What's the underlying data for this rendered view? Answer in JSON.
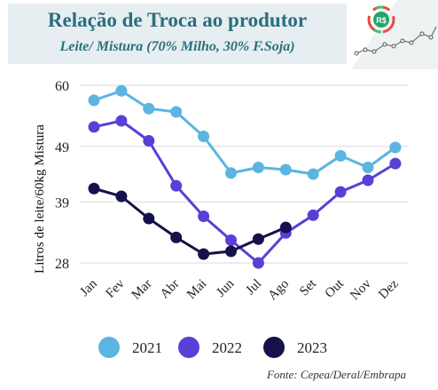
{
  "header": {
    "title": "Relação de Troca ao produtor",
    "subtitle": "Leite/ Mistura (70% Milho, 30% F.Soja)"
  },
  "logo": {
    "badge_text": "R$",
    "icon_name": "rising-trend-logo-icon"
  },
  "source": "Fonte: Cepea/Deral/Embrapa",
  "chart_data": {
    "type": "line",
    "title": "Relação de Troca ao produtor",
    "subtitle": "Leite/ Mistura (70% Milho, 30% F.Soja)",
    "ylabel": "Litros de leite/60kg Mistura",
    "xlabel": "",
    "ylim": [
      28,
      60
    ],
    "yticks": [
      28,
      39,
      49,
      60
    ],
    "grid": true,
    "legend_position": "bottom",
    "categories": [
      "Jan",
      "Fev",
      "Mar",
      "Abr",
      "Mai",
      "Jun",
      "Jul",
      "Ago",
      "Set",
      "Out",
      "Nov",
      "Dez"
    ],
    "series": [
      {
        "name": "2021",
        "color": "#5bb5e0",
        "values": [
          57.3,
          59.0,
          55.8,
          55.2,
          50.8,
          44.2,
          45.2,
          44.8,
          44.0,
          47.3,
          45.2,
          48.8
        ]
      },
      {
        "name": "2022",
        "color": "#5a3fd6",
        "values": [
          52.5,
          53.6,
          50.0,
          41.9,
          36.4,
          32.1,
          28.0,
          33.4,
          36.6,
          40.8,
          42.9,
          45.9
        ]
      },
      {
        "name": "2023",
        "color": "#15114a",
        "values": [
          41.4,
          40.0,
          36.0,
          32.6,
          29.6,
          30.1,
          32.3,
          34.4,
          null,
          null,
          null,
          null
        ]
      }
    ]
  }
}
